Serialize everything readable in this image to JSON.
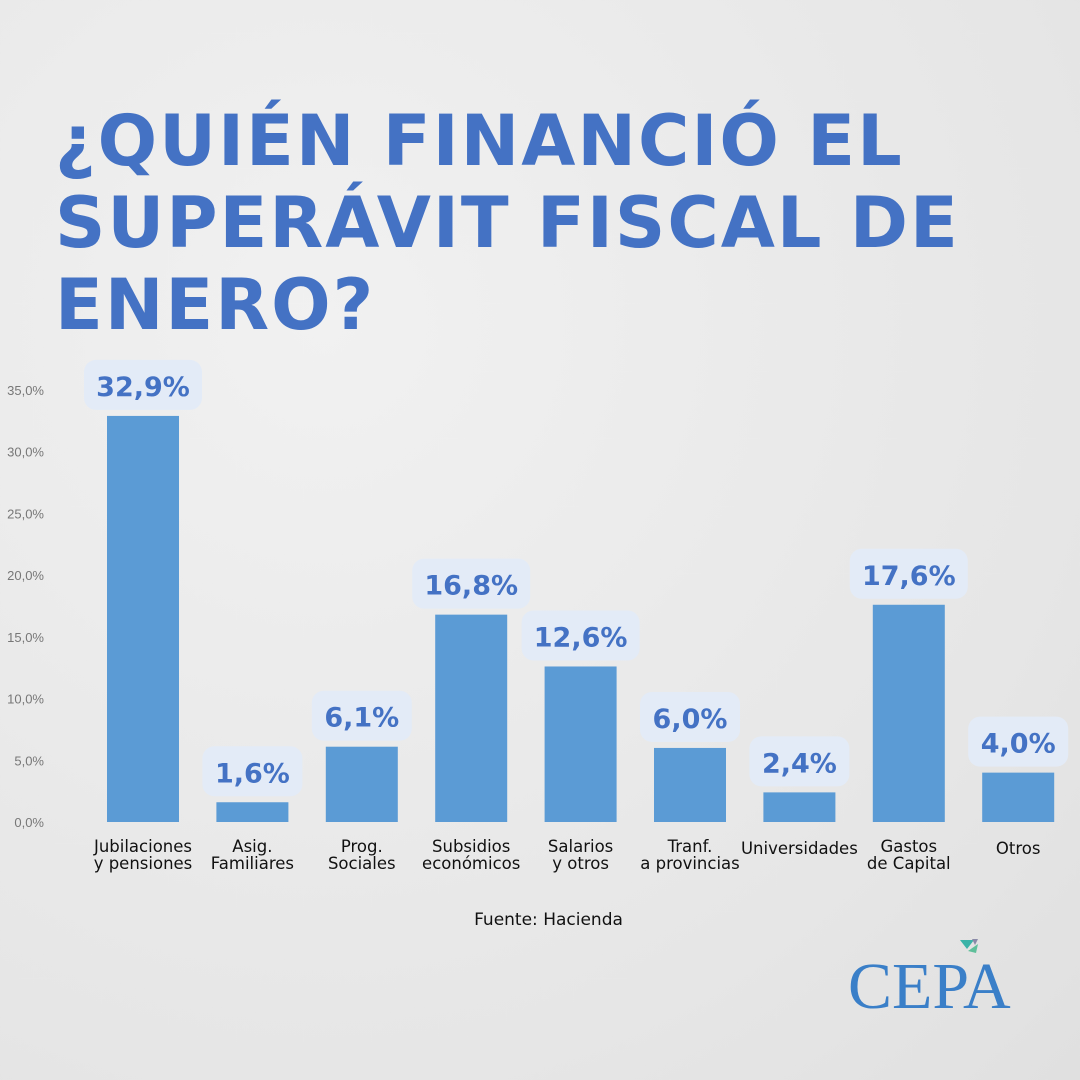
{
  "title": "¿QUIÉN FINANCIÓ EL SUPERÁVIT FISCAL DE ENERO?",
  "source": "Fuente: Hacienda",
  "logo_text": "CEPA",
  "colors": {
    "bar": "#5b9bd5",
    "label_bg": "#e3ebf7",
    "title": "#4472c4"
  },
  "chart_data": {
    "type": "bar",
    "title": "¿QUIÉN FINANCIÓ EL SUPERÁVIT FISCAL DE ENERO?",
    "xlabel": "",
    "ylabel": "",
    "ylim": [
      0,
      35
    ],
    "yticks": [
      "0,0%",
      "5,0%",
      "10,0%",
      "15,0%",
      "20,0%",
      "25,0%",
      "30,0%",
      "35,0%"
    ],
    "categories": [
      [
        "Jubilaciones",
        "y pensiones"
      ],
      [
        "Asig.",
        "Familiares"
      ],
      [
        "Prog.",
        "Sociales"
      ],
      [
        "Subsidios",
        "económicos"
      ],
      [
        "Salarios",
        "y otros"
      ],
      [
        "Tranf.",
        "a provincias"
      ],
      [
        "Universidades"
      ],
      [
        "Gastos",
        "de Capital"
      ],
      [
        "Otros"
      ]
    ],
    "values": [
      32.9,
      1.6,
      6.1,
      16.8,
      12.6,
      6.0,
      2.4,
      17.6,
      4.0
    ],
    "labels": [
      "32,9%",
      "1,6%",
      "6,1%",
      "16,8%",
      "12,6%",
      "6,0%",
      "2,4%",
      "17,6%",
      "4,0%"
    ],
    "grid": false,
    "legend": "none"
  }
}
